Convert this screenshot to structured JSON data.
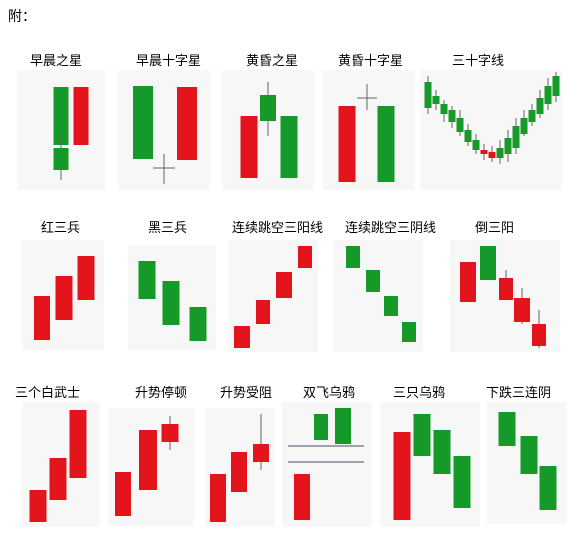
{
  "header": "附：",
  "colors": {
    "up": "#e3141b",
    "down": "#159a2a",
    "wick": "#666666",
    "line": "#9aa3ae"
  },
  "patterns": [
    {
      "id": "morning-star",
      "label": "早晨之星"
    },
    {
      "id": "morning-doji-star",
      "label": "早晨十字星"
    },
    {
      "id": "evening-star",
      "label": "黄昏之星"
    },
    {
      "id": "evening-doji-star",
      "label": "黄昏十字星"
    },
    {
      "id": "thirty-line",
      "label": "三十字线"
    },
    {
      "id": "red-three-soldiers",
      "label": "红三兵"
    },
    {
      "id": "black-three-soldiers",
      "label": "黑三兵"
    },
    {
      "id": "gap-three-yang",
      "label": "连续跳空三阳线"
    },
    {
      "id": "gap-three-yin",
      "label": "连续跳空三阴线"
    },
    {
      "id": "inverted-three-yang",
      "label": "倒三阳"
    },
    {
      "id": "three-white-soldiers",
      "label": "三个白武士"
    },
    {
      "id": "rise-pause",
      "label": "升势停顿"
    },
    {
      "id": "rise-blocked",
      "label": "升势受阻"
    },
    {
      "id": "two-crows",
      "label": "双飞乌鸦"
    },
    {
      "id": "three-crows",
      "label": "三只乌鸦"
    },
    {
      "id": "falling-three-yin",
      "label": "下跌三连阴"
    }
  ]
}
